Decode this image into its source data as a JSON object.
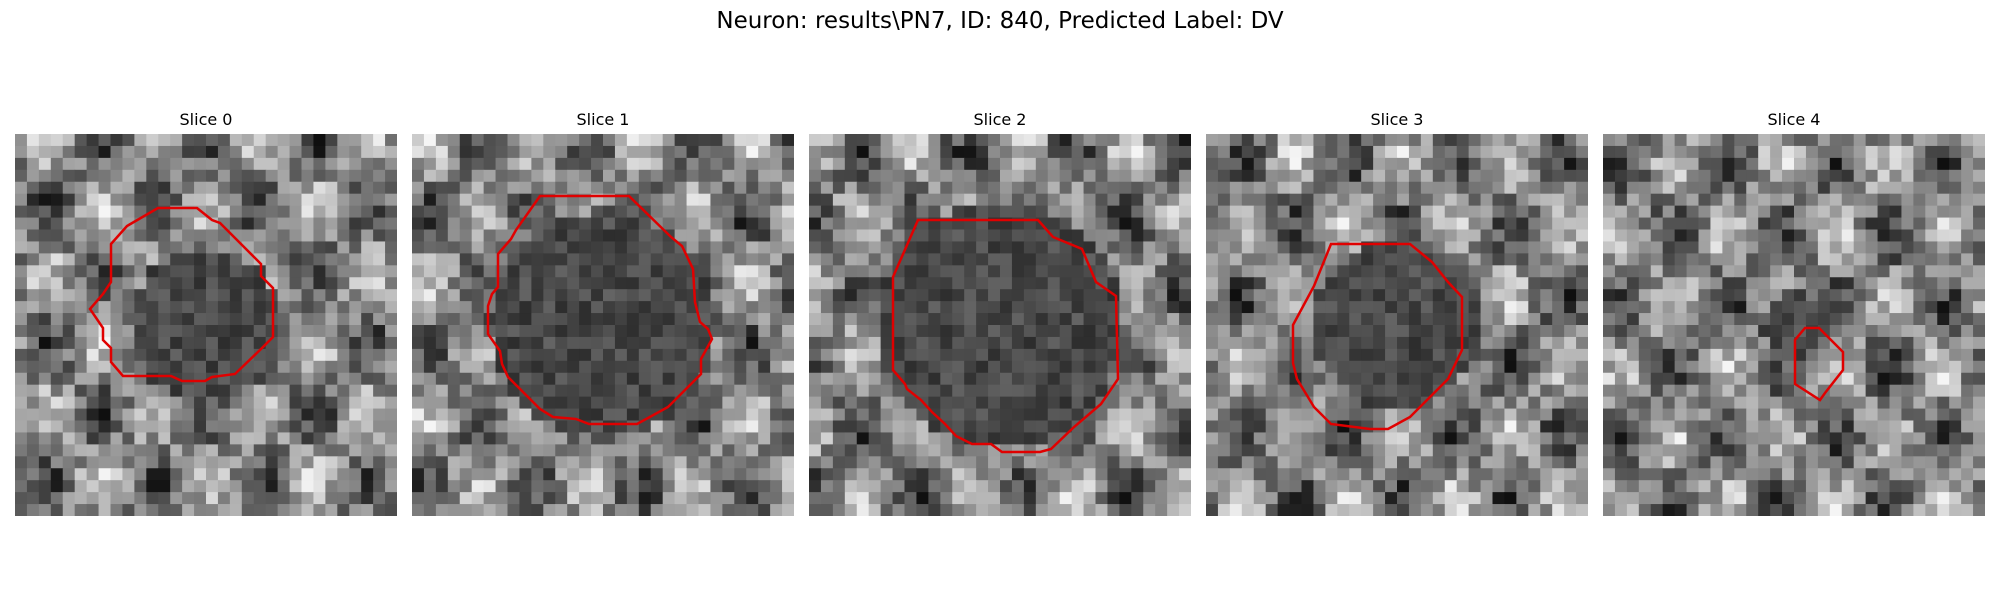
{
  "figure": {
    "title": "Neuron: results\\PN7, ID: 840, Predicted Label: DV",
    "contour_color": "#e00000"
  },
  "panels": [
    {
      "title": "Slice 0",
      "blob_radius": 0.2,
      "contour_shape": "irregular-polygon"
    },
    {
      "title": "Slice 1",
      "blob_radius": 0.3,
      "contour_shape": "irregular-polygon"
    },
    {
      "title": "Slice 2",
      "blob_radius": 0.32,
      "contour_shape": "irregular-polygon"
    },
    {
      "title": "Slice 3",
      "blob_radius": 0.22,
      "contour_shape": "octagon"
    },
    {
      "title": "Slice 4",
      "blob_radius": 0.08,
      "contour_shape": "small-diamond"
    }
  ]
}
